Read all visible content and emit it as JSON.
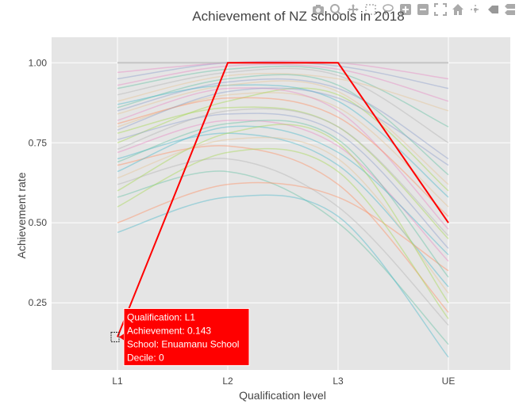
{
  "chart_data": {
    "type": "line",
    "title": "Achievement of NZ schools in 2018",
    "xlabel": "Qualification level",
    "ylabel": "Achievement rate",
    "categories": [
      "L1",
      "L2",
      "L3",
      "UE"
    ],
    "yticks": [
      "0.25",
      "0.50",
      "0.75",
      "1.00"
    ],
    "ylim": [
      0.04,
      1.08
    ],
    "grid": true,
    "legend": "none",
    "highlight": {
      "values": [
        0.143,
        1.0,
        1.0,
        0.5
      ],
      "color": "#ff0000"
    },
    "series_colors": [
      "#66c2a5",
      "#8da0cb",
      "#e5c494",
      "#a6d854",
      "#e78ac3",
      "#4bb8c9",
      "#fc8d62",
      "#b3b3b3"
    ],
    "background_series_approx": [
      [
        0.92,
        0.98,
        0.97,
        0.8
      ],
      [
        0.85,
        0.94,
        0.92,
        0.7
      ],
      [
        0.8,
        0.9,
        0.86,
        0.55
      ],
      [
        0.78,
        0.86,
        0.8,
        0.45
      ],
      [
        0.72,
        0.82,
        0.74,
        0.38
      ],
      [
        0.7,
        0.78,
        0.68,
        0.3
      ],
      [
        0.68,
        0.74,
        0.62,
        0.22
      ],
      [
        0.62,
        0.7,
        0.55,
        0.18
      ],
      [
        0.58,
        0.66,
        0.5,
        0.12
      ],
      [
        0.95,
        1.0,
        0.99,
        0.92
      ],
      [
        0.88,
        0.96,
        0.95,
        0.85
      ],
      [
        0.75,
        0.88,
        0.9,
        0.6
      ],
      [
        0.82,
        0.92,
        0.85,
        0.48
      ],
      [
        0.66,
        0.8,
        0.72,
        0.4
      ],
      [
        0.5,
        0.62,
        0.58,
        0.35
      ],
      [
        0.9,
        0.97,
        0.96,
        0.75
      ],
      [
        0.86,
        0.95,
        0.93,
        0.65
      ],
      [
        0.76,
        0.84,
        0.78,
        0.42
      ],
      [
        0.64,
        0.76,
        0.7,
        0.28
      ],
      [
        0.55,
        0.72,
        0.66,
        0.2
      ],
      [
        0.93,
        0.99,
        0.98,
        0.88
      ],
      [
        0.87,
        0.93,
        0.88,
        0.58
      ],
      [
        0.81,
        0.89,
        0.83,
        0.52
      ],
      [
        0.73,
        0.85,
        0.8,
        0.46
      ],
      [
        0.69,
        0.81,
        0.76,
        0.33
      ],
      [
        0.79,
        0.91,
        0.89,
        0.68
      ],
      [
        0.84,
        0.93,
        0.91,
        0.62
      ],
      [
        0.6,
        0.78,
        0.75,
        0.25
      ],
      [
        0.97,
        1.0,
        1.0,
        0.95
      ],
      [
        0.47,
        0.58,
        0.52,
        0.08
      ]
    ]
  },
  "tooltip": {
    "lines": [
      "Qualification: L1",
      "Achievement: 0.143",
      "School: Enuamanu School",
      "Decile: 0"
    ],
    "background": "#ff0000",
    "text_color": "#ffffff"
  },
  "modebar": {
    "icons": [
      "camera-icon",
      "zoom-icon",
      "pan-icon",
      "box-select-icon",
      "lasso-select-icon",
      "zoom-in-icon",
      "zoom-out-icon",
      "autoscale-icon",
      "home-icon",
      "spike-lines-icon",
      "hover-closest-icon",
      "hover-compare-icon"
    ]
  }
}
